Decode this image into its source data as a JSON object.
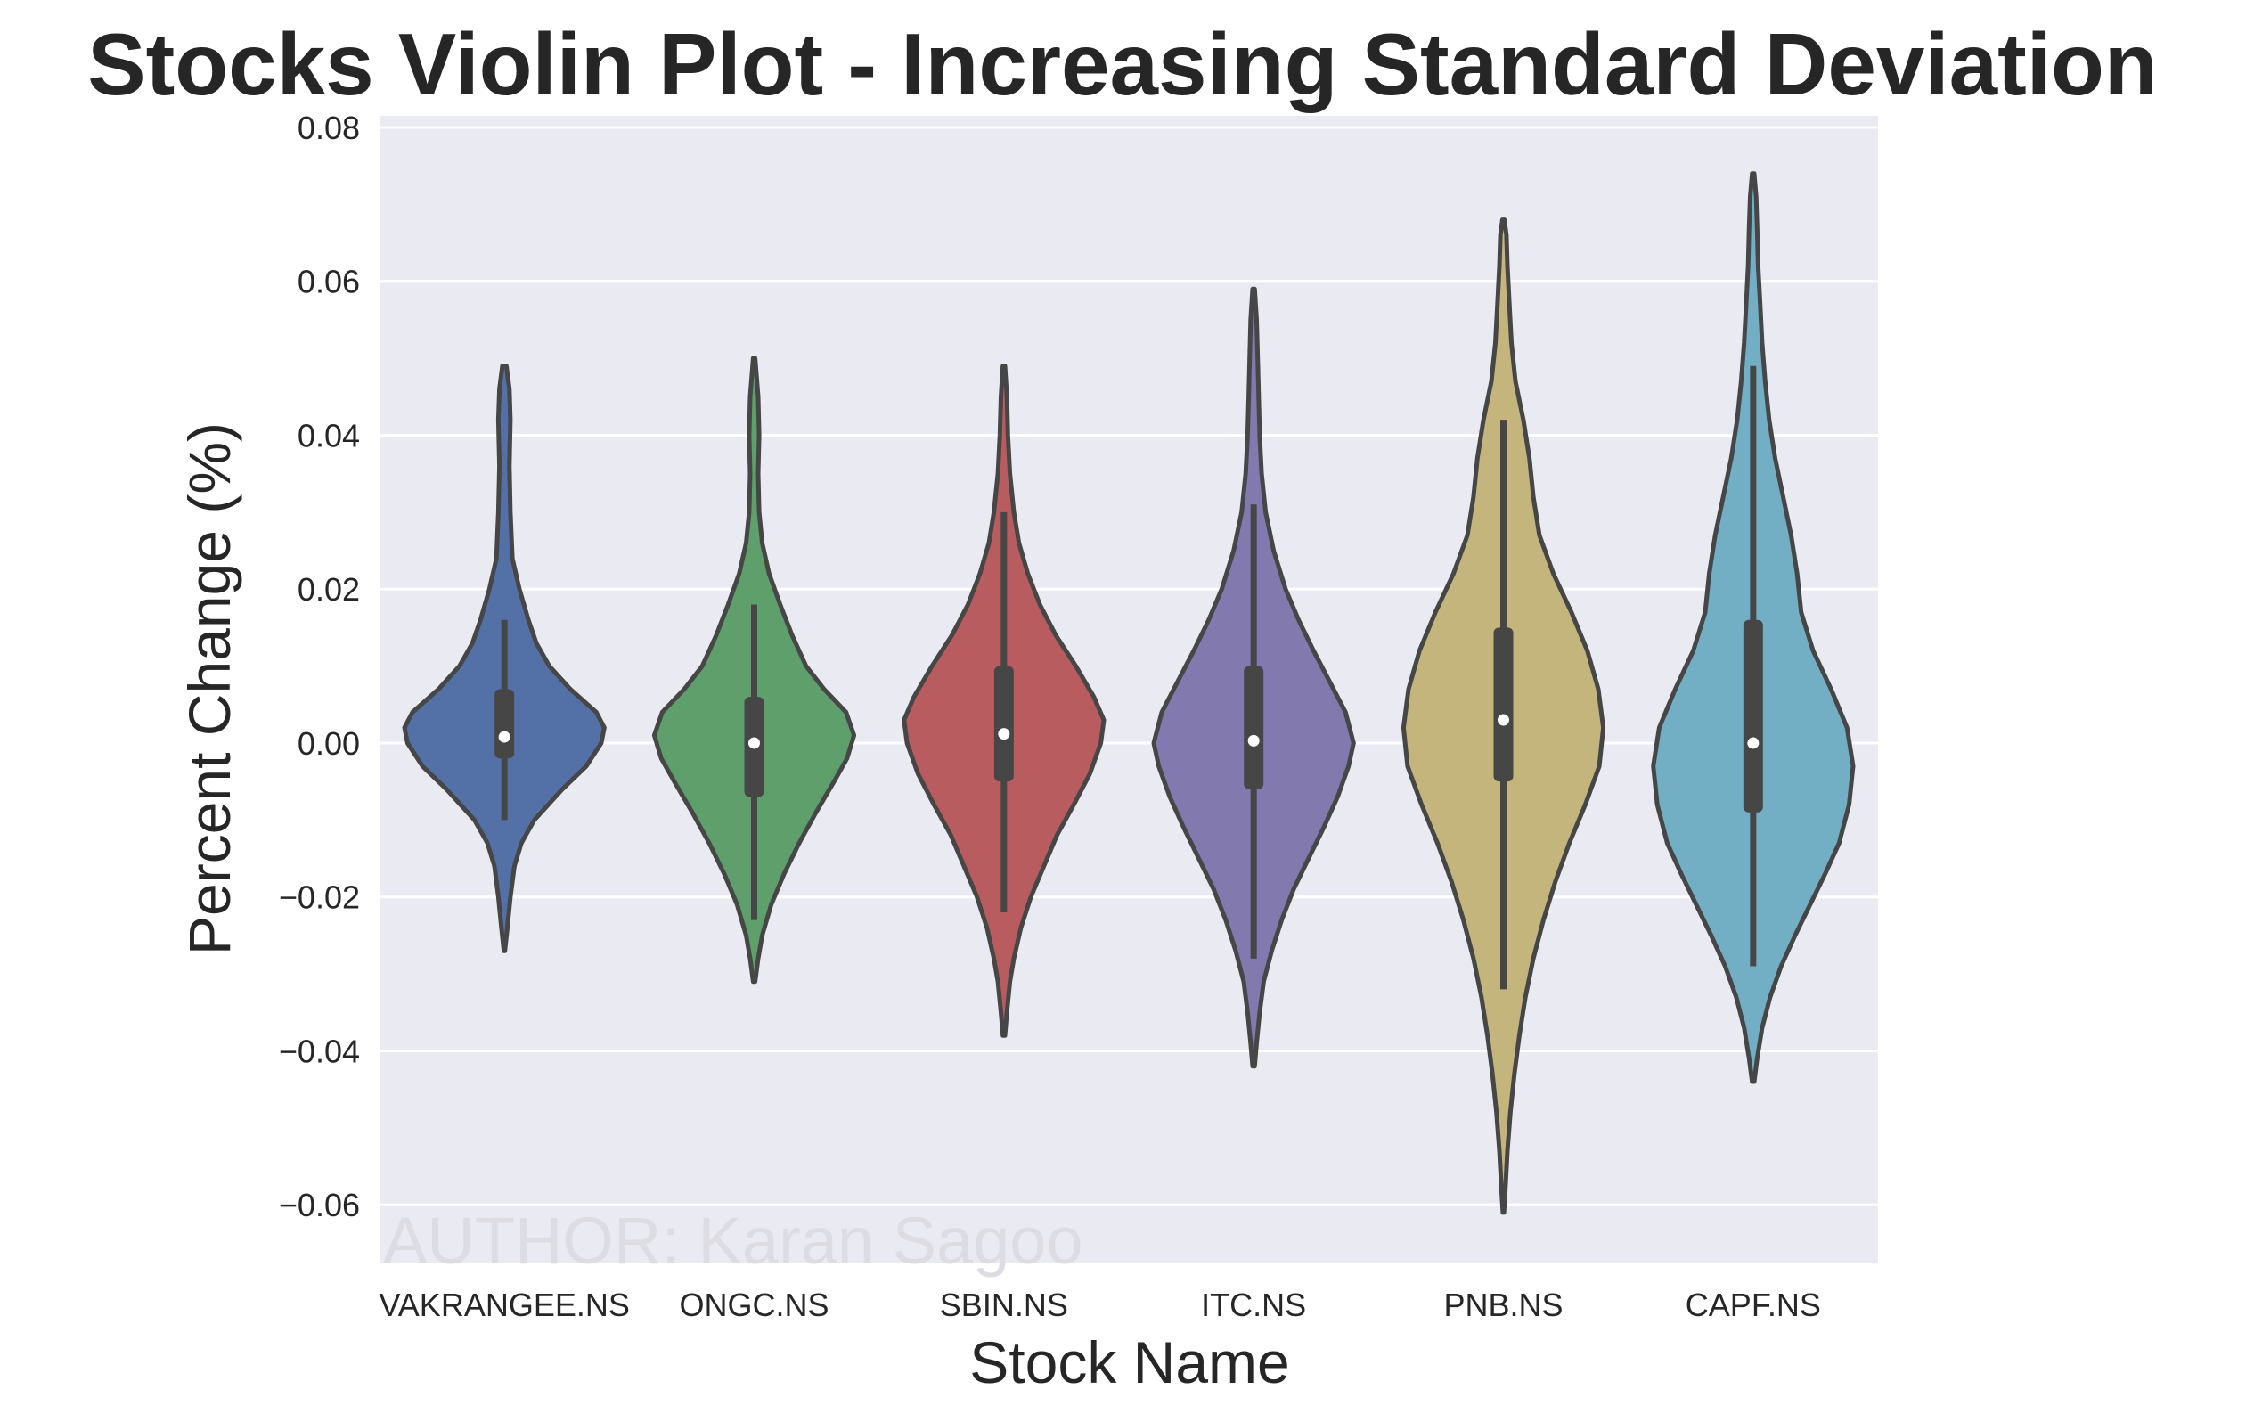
{
  "chart_data": {
    "type": "violin",
    "title": "Stocks Violin Plot - Increasing Standard Deviation",
    "xlabel": "Stock Name",
    "ylabel": "Percent Change (%)",
    "ylim": [
      -0.0675,
      0.0815
    ],
    "yticks": [
      0.08,
      0.06,
      0.04,
      0.02,
      0.0,
      -0.02,
      -0.04,
      -0.06
    ],
    "ytick_labels": [
      "0.08",
      "0.06",
      "0.04",
      "0.02",
      "0.00",
      "−0.02",
      "−0.04",
      "−0.06"
    ],
    "grid": true,
    "watermark": "AUTHOR: Karan Sagoo",
    "categories": [
      "VAKRANGEE.NS",
      "ONGC.NS",
      "SBIN.NS",
      "ITC.NS",
      "PNB.NS",
      "CAPF.NS"
    ],
    "series": [
      {
        "color": "#5471a7",
        "median": 0.0008,
        "q1": -0.002,
        "q3": 0.007,
        "whisker_low": -0.01,
        "whisker_high": 0.016,
        "profile": [
          [
            -0.027,
            0.005
          ],
          [
            -0.024,
            0.03
          ],
          [
            -0.02,
            0.06
          ],
          [
            -0.016,
            0.1
          ],
          [
            -0.013,
            0.17
          ],
          [
            -0.01,
            0.3
          ],
          [
            -0.006,
            0.58
          ],
          [
            -0.003,
            0.82
          ],
          [
            0.0,
            0.97
          ],
          [
            0.002,
            1.0
          ],
          [
            0.004,
            0.92
          ],
          [
            0.007,
            0.66
          ],
          [
            0.01,
            0.45
          ],
          [
            0.013,
            0.32
          ],
          [
            0.016,
            0.24
          ],
          [
            0.02,
            0.15
          ],
          [
            0.024,
            0.08
          ],
          [
            0.03,
            0.06
          ],
          [
            0.036,
            0.05
          ],
          [
            0.042,
            0.06
          ],
          [
            0.046,
            0.05
          ],
          [
            0.049,
            0.02
          ]
        ]
      },
      {
        "color": "#5e9f6b",
        "median": 0.0,
        "q1": -0.007,
        "q3": 0.006,
        "whisker_low": -0.023,
        "whisker_high": 0.018,
        "profile": [
          [
            -0.031,
            0.01
          ],
          [
            -0.028,
            0.04
          ],
          [
            -0.025,
            0.08
          ],
          [
            -0.021,
            0.17
          ],
          [
            -0.017,
            0.3
          ],
          [
            -0.013,
            0.45
          ],
          [
            -0.009,
            0.62
          ],
          [
            -0.005,
            0.8
          ],
          [
            -0.002,
            0.93
          ],
          [
            0.001,
            1.0
          ],
          [
            0.004,
            0.92
          ],
          [
            0.007,
            0.7
          ],
          [
            0.01,
            0.52
          ],
          [
            0.014,
            0.38
          ],
          [
            0.018,
            0.26
          ],
          [
            0.022,
            0.15
          ],
          [
            0.026,
            0.08
          ],
          [
            0.03,
            0.05
          ],
          [
            0.035,
            0.04
          ],
          [
            0.04,
            0.05
          ],
          [
            0.045,
            0.04
          ],
          [
            0.05,
            0.01
          ]
        ]
      },
      {
        "color": "#b85c5f",
        "median": 0.0012,
        "q1": -0.005,
        "q3": 0.01,
        "whisker_low": -0.022,
        "whisker_high": 0.03,
        "profile": [
          [
            -0.038,
            0.01
          ],
          [
            -0.035,
            0.03
          ],
          [
            -0.031,
            0.06
          ],
          [
            -0.028,
            0.1
          ],
          [
            -0.024,
            0.17
          ],
          [
            -0.02,
            0.27
          ],
          [
            -0.016,
            0.4
          ],
          [
            -0.012,
            0.53
          ],
          [
            -0.008,
            0.7
          ],
          [
            -0.004,
            0.86
          ],
          [
            0.0,
            0.97
          ],
          [
            0.003,
            1.0
          ],
          [
            0.006,
            0.9
          ],
          [
            0.01,
            0.72
          ],
          [
            0.014,
            0.52
          ],
          [
            0.018,
            0.36
          ],
          [
            0.022,
            0.24
          ],
          [
            0.026,
            0.15
          ],
          [
            0.03,
            0.1
          ],
          [
            0.035,
            0.06
          ],
          [
            0.04,
            0.04
          ],
          [
            0.045,
            0.03
          ],
          [
            0.049,
            0.01
          ]
        ]
      },
      {
        "color": "#8279ae",
        "median": 0.0003,
        "q1": -0.006,
        "q3": 0.01,
        "whisker_low": -0.028,
        "whisker_high": 0.031,
        "profile": [
          [
            -0.042,
            0.01
          ],
          [
            -0.039,
            0.03
          ],
          [
            -0.035,
            0.06
          ],
          [
            -0.031,
            0.1
          ],
          [
            -0.027,
            0.18
          ],
          [
            -0.023,
            0.28
          ],
          [
            -0.019,
            0.4
          ],
          [
            -0.015,
            0.55
          ],
          [
            -0.011,
            0.7
          ],
          [
            -0.007,
            0.84
          ],
          [
            -0.003,
            0.95
          ],
          [
            0.0,
            1.0
          ],
          [
            0.004,
            0.92
          ],
          [
            0.008,
            0.76
          ],
          [
            0.012,
            0.6
          ],
          [
            0.016,
            0.45
          ],
          [
            0.02,
            0.32
          ],
          [
            0.025,
            0.2
          ],
          [
            0.03,
            0.12
          ],
          [
            0.035,
            0.08
          ],
          [
            0.04,
            0.06
          ],
          [
            0.045,
            0.05
          ],
          [
            0.05,
            0.04
          ],
          [
            0.055,
            0.03
          ],
          [
            0.059,
            0.01
          ]
        ]
      },
      {
        "color": "#c4b57c",
        "median": 0.003,
        "q1": -0.005,
        "q3": 0.015,
        "whisker_low": -0.032,
        "whisker_high": 0.042,
        "profile": [
          [
            -0.061,
            0.005
          ],
          [
            -0.058,
            0.02
          ],
          [
            -0.053,
            0.04
          ],
          [
            -0.048,
            0.07
          ],
          [
            -0.043,
            0.11
          ],
          [
            -0.038,
            0.16
          ],
          [
            -0.033,
            0.22
          ],
          [
            -0.028,
            0.3
          ],
          [
            -0.023,
            0.4
          ],
          [
            -0.018,
            0.52
          ],
          [
            -0.013,
            0.66
          ],
          [
            -0.008,
            0.82
          ],
          [
            -0.003,
            0.96
          ],
          [
            0.002,
            1.0
          ],
          [
            0.007,
            0.95
          ],
          [
            0.012,
            0.84
          ],
          [
            0.017,
            0.68
          ],
          [
            0.022,
            0.5
          ],
          [
            0.027,
            0.36
          ],
          [
            0.032,
            0.3
          ],
          [
            0.037,
            0.26
          ],
          [
            0.042,
            0.2
          ],
          [
            0.047,
            0.12
          ],
          [
            0.052,
            0.08
          ],
          [
            0.057,
            0.06
          ],
          [
            0.062,
            0.04
          ],
          [
            0.066,
            0.03
          ],
          [
            0.068,
            0.01
          ]
        ]
      },
      {
        "color": "#72afc4",
        "median": 0.0,
        "q1": -0.009,
        "q3": 0.016,
        "whisker_low": -0.029,
        "whisker_high": 0.049,
        "profile": [
          [
            -0.044,
            0.01
          ],
          [
            -0.041,
            0.04
          ],
          [
            -0.037,
            0.09
          ],
          [
            -0.033,
            0.17
          ],
          [
            -0.029,
            0.28
          ],
          [
            -0.025,
            0.42
          ],
          [
            -0.021,
            0.57
          ],
          [
            -0.017,
            0.72
          ],
          [
            -0.013,
            0.86
          ],
          [
            -0.008,
            0.96
          ],
          [
            -0.003,
            1.0
          ],
          [
            0.002,
            0.94
          ],
          [
            0.007,
            0.78
          ],
          [
            0.012,
            0.6
          ],
          [
            0.017,
            0.48
          ],
          [
            0.022,
            0.44
          ],
          [
            0.027,
            0.38
          ],
          [
            0.032,
            0.3
          ],
          [
            0.037,
            0.22
          ],
          [
            0.042,
            0.16
          ],
          [
            0.047,
            0.12
          ],
          [
            0.052,
            0.09
          ],
          [
            0.057,
            0.07
          ],
          [
            0.062,
            0.05
          ],
          [
            0.067,
            0.04
          ],
          [
            0.071,
            0.03
          ],
          [
            0.074,
            0.01
          ]
        ]
      }
    ]
  }
}
